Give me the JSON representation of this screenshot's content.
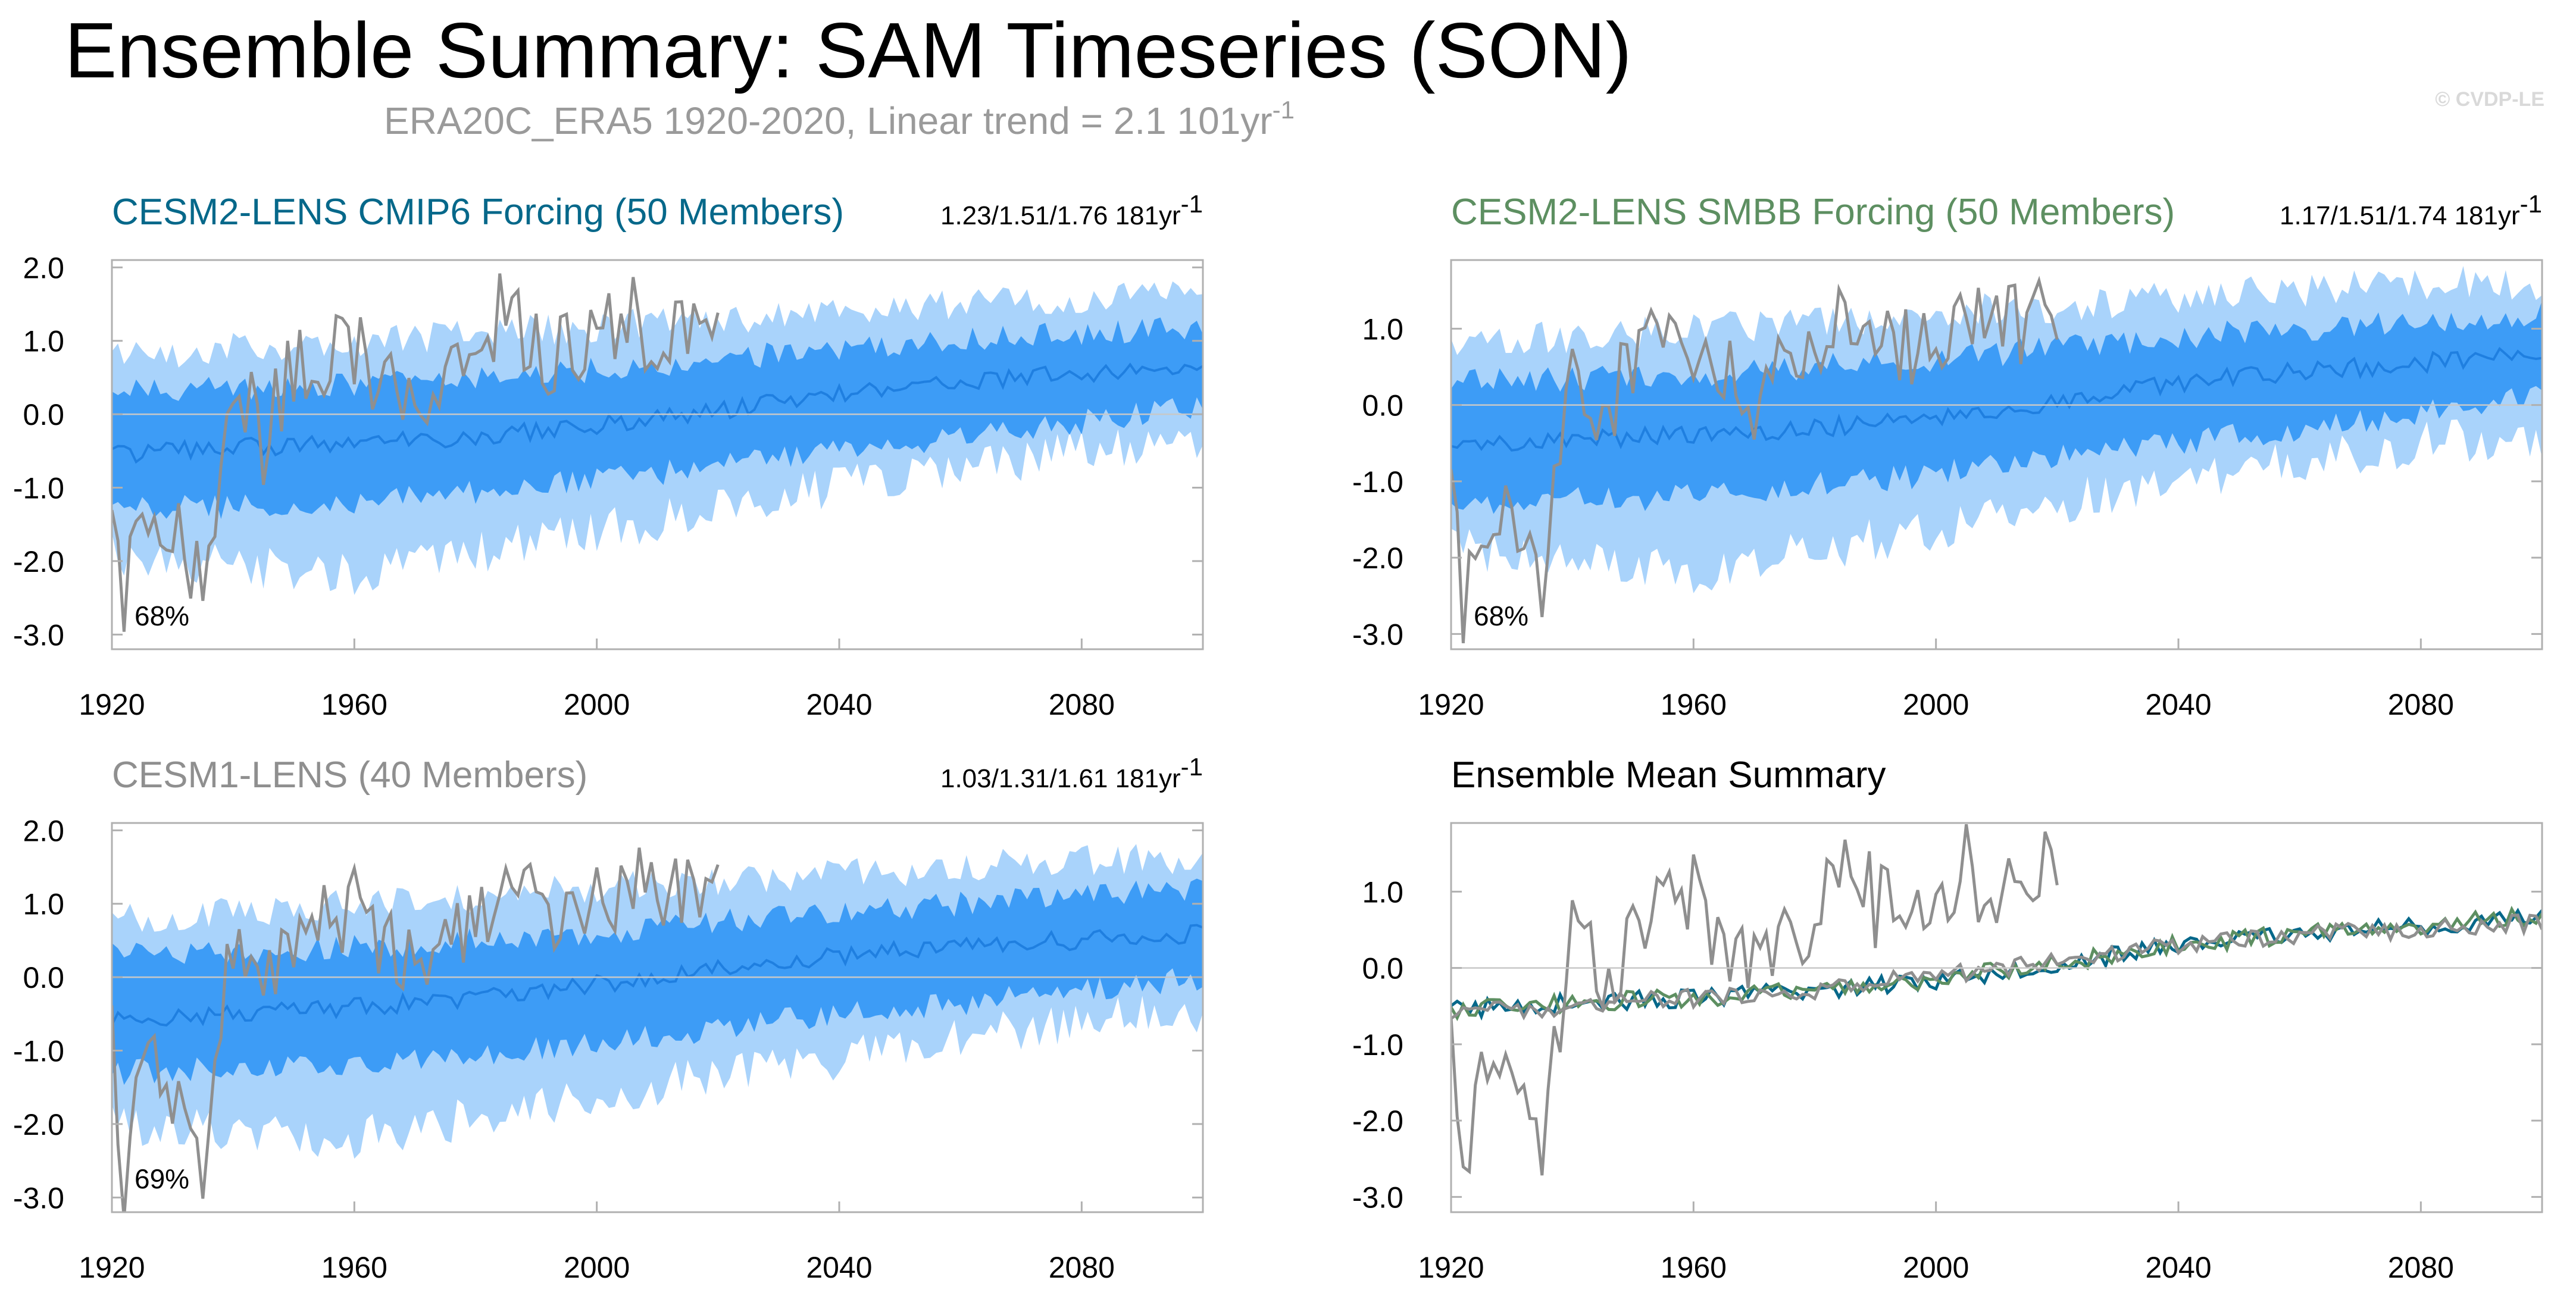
{
  "figure": {
    "title": "Ensemble Summary: SAM Timeseries (SON)",
    "subtitle": "ERA20C_ERA5 1920-2020, Linear trend = 2.1 101yr",
    "subtitle_superscript": "-1",
    "copyright": "© CVDP-LE"
  },
  "colors": {
    "band_outer": "#a9d3fb",
    "band_inner": "#3d9cf6",
    "ens_mean": "#1f7fe0",
    "obs": "#8f8f8f",
    "cesm2_cmip6": "#06688a",
    "cesm2_smbb": "#5d8f61",
    "cesm1": "#8f8f8f"
  },
  "chart_data": [
    {
      "type": "area",
      "title": "CESM2-LENS CMIP6 Forcing (50 Members)",
      "title_color": "#06688a",
      "stats": "1.23/1.51/1.76 181yr",
      "stats_superscript": "-1",
      "percent_label": "68%",
      "x_ticks": [
        "1920",
        "1960",
        "2000",
        "2040",
        "2080"
      ],
      "y_ticks": [
        "2.0",
        "1.0",
        "0.0",
        "-1.0",
        "-2.0",
        "-3.0"
      ],
      "xlim": [
        1920,
        2100
      ],
      "ylim": [
        -3.2,
        2.1
      ],
      "series": [
        {
          "name": "Ensemble mean",
          "x": [
            1920,
            1940,
            1960,
            1980,
            2000,
            2020,
            2040,
            2060,
            2080,
            2100
          ],
          "values": [
            -0.55,
            -0.45,
            -0.4,
            -0.3,
            -0.15,
            0.05,
            0.3,
            0.45,
            0.55,
            0.65
          ]
        },
        {
          "name": "Inner band (min/max)",
          "x": [
            1920,
            1960,
            2000,
            2040,
            2080,
            2100
          ],
          "lower": [
            -1.3,
            -1.2,
            -0.9,
            -0.5,
            -0.1,
            0.1
          ],
          "upper": [
            0.3,
            0.4,
            0.6,
            0.9,
            1.1,
            1.2
          ]
        },
        {
          "name": "Outer band (min/max)",
          "x": [
            1920,
            1960,
            2000,
            2040,
            2080,
            2100
          ],
          "lower": [
            -1.9,
            -2.2,
            -1.6,
            -1.0,
            -0.5,
            -0.4
          ],
          "upper": [
            0.8,
            1.0,
            1.2,
            1.4,
            1.6,
            1.6
          ]
        },
        {
          "name": "ERA20C_ERA5",
          "x": [
            1920,
            1922,
            1925,
            1930,
            1935,
            1940,
            1945,
            1950,
            1960,
            1970,
            1980,
            1985,
            1990,
            2000,
            2005,
            2010,
            2020
          ],
          "values": [
            -0.9,
            -2.7,
            -1.3,
            -1.4,
            -2.5,
            0.6,
            -0.4,
            0.7,
            0.9,
            0.0,
            0.7,
            1.5,
            0.8,
            0.9,
            1.4,
            0.9,
            1.3
          ]
        }
      ]
    },
    {
      "type": "area",
      "title": "CESM2-LENS SMBB Forcing (50 Members)",
      "title_color": "#5d8f61",
      "stats": "1.17/1.51/1.74 181yr",
      "stats_superscript": "-1",
      "percent_label": "68%",
      "x_ticks": [
        "1920",
        "1960",
        "2000",
        "2040",
        "2080"
      ],
      "y_ticks": [
        "1.0",
        "0.0",
        "-1.0",
        "-2.0",
        "-3.0"
      ],
      "xlim": [
        1920,
        2100
      ],
      "ylim": [
        -3.2,
        1.9
      ],
      "series": [
        {
          "name": "Ensemble mean",
          "x": [
            1920,
            1940,
            1960,
            1980,
            2000,
            2020,
            2040,
            2060,
            2080,
            2100
          ],
          "values": [
            -0.55,
            -0.45,
            -0.4,
            -0.3,
            -0.15,
            0.05,
            0.3,
            0.45,
            0.55,
            0.7
          ]
        },
        {
          "name": "Inner band (min/max)",
          "x": [
            1920,
            1960,
            2000,
            2040,
            2080,
            2100
          ],
          "lower": [
            -1.3,
            -1.2,
            -0.9,
            -0.5,
            -0.1,
            0.1
          ],
          "upper": [
            0.3,
            0.4,
            0.6,
            0.9,
            1.1,
            1.2
          ]
        },
        {
          "name": "Outer band (min/max)",
          "x": [
            1920,
            1960,
            2000,
            2040,
            2080,
            2100
          ],
          "lower": [
            -1.9,
            -2.2,
            -1.6,
            -1.0,
            -0.5,
            -0.4
          ],
          "upper": [
            0.8,
            1.0,
            1.2,
            1.4,
            1.6,
            1.6
          ]
        },
        {
          "name": "ERA20C_ERA5",
          "x": [
            1920,
            1922,
            1925,
            1930,
            1935,
            1940,
            1945,
            1950,
            1960,
            1970,
            1980,
            1985,
            1990,
            2000,
            2005,
            2010,
            2020
          ],
          "values": [
            -0.9,
            -2.7,
            -1.3,
            -1.4,
            -2.5,
            0.6,
            -0.4,
            0.7,
            0.9,
            0.0,
            0.7,
            1.5,
            0.8,
            0.9,
            1.4,
            0.9,
            1.3
          ]
        }
      ]
    },
    {
      "type": "area",
      "title": "CESM1-LENS (40 Members)",
      "title_color": "#8f8f8f",
      "stats": "1.03/1.31/1.61 181yr",
      "stats_superscript": "-1",
      "percent_label": "69%",
      "x_ticks": [
        "1920",
        "1960",
        "2000",
        "2040",
        "2080"
      ],
      "y_ticks": [
        "2.0",
        "1.0",
        "0.0",
        "-1.0",
        "-2.0",
        "-3.0"
      ],
      "xlim": [
        1920,
        2100
      ],
      "ylim": [
        -3.2,
        2.1
      ],
      "series": [
        {
          "name": "Ensemble mean",
          "x": [
            1920,
            1940,
            1960,
            1980,
            2000,
            2020,
            2040,
            2060,
            2080,
            2100
          ],
          "values": [
            -0.6,
            -0.5,
            -0.4,
            -0.3,
            -0.1,
            0.1,
            0.3,
            0.45,
            0.5,
            0.6
          ]
        },
        {
          "name": "Inner band (min/max)",
          "x": [
            1920,
            1960,
            2000,
            2040,
            2080,
            2100
          ],
          "lower": [
            -1.3,
            -1.2,
            -0.9,
            -0.5,
            -0.2,
            0.0
          ],
          "upper": [
            0.3,
            0.4,
            0.6,
            0.9,
            1.1,
            1.2
          ]
        },
        {
          "name": "Outer band (min/max)",
          "x": [
            1920,
            1960,
            2000,
            2040,
            2080,
            2100
          ],
          "lower": [
            -2.0,
            -2.2,
            -1.6,
            -1.1,
            -0.6,
            -0.5
          ],
          "upper": [
            0.8,
            1.0,
            1.2,
            1.4,
            1.6,
            1.6
          ]
        },
        {
          "name": "ERA20C_ERA5",
          "x": [
            1920,
            1922,
            1925,
            1930,
            1935,
            1940,
            1945,
            1950,
            1960,
            1970,
            1980,
            1985,
            1990,
            2000,
            2005,
            2010,
            2020
          ],
          "values": [
            -0.9,
            -2.7,
            -1.3,
            -1.4,
            -2.5,
            0.6,
            -0.4,
            0.7,
            0.9,
            0.0,
            0.7,
            1.5,
            0.8,
            0.9,
            1.4,
            0.9,
            1.3
          ]
        }
      ]
    },
    {
      "type": "line",
      "title": "Ensemble Mean Summary",
      "title_color": "#000000",
      "x_ticks": [
        "1920",
        "1960",
        "2000",
        "2040",
        "2080"
      ],
      "y_ticks": [
        "1.0",
        "0.0",
        "-1.0",
        "-2.0",
        "-3.0"
      ],
      "xlim": [
        1920,
        2100
      ],
      "ylim": [
        -3.2,
        1.9
      ],
      "series": [
        {
          "name": "CESM2-LENS CMIP6 Forcing",
          "color": "#06688a",
          "x": [
            1920,
            1940,
            1960,
            1980,
            2000,
            2020,
            2040,
            2060,
            2080,
            2100
          ],
          "values": [
            -0.55,
            -0.45,
            -0.4,
            -0.3,
            -0.15,
            0.05,
            0.3,
            0.45,
            0.55,
            0.65
          ]
        },
        {
          "name": "CESM2-LENS SMBB Forcing",
          "color": "#5d8f61",
          "x": [
            1920,
            1940,
            1960,
            1980,
            2000,
            2020,
            2040,
            2060,
            2080,
            2100
          ],
          "values": [
            -0.55,
            -0.45,
            -0.4,
            -0.3,
            -0.15,
            0.05,
            0.3,
            0.45,
            0.55,
            0.7
          ]
        },
        {
          "name": "CESM1-LENS",
          "color": "#8f8f8f",
          "x": [
            1920,
            1940,
            1960,
            1980,
            2000,
            2020,
            2040,
            2060,
            2080,
            2100
          ],
          "values": [
            -0.6,
            -0.5,
            -0.4,
            -0.3,
            -0.1,
            0.1,
            0.3,
            0.45,
            0.5,
            0.6
          ]
        },
        {
          "name": "ERA20C_ERA5",
          "color": "#8f8f8f",
          "x": [
            1920,
            1922,
            1925,
            1930,
            1935,
            1940,
            1945,
            1950,
            1960,
            1970,
            1980,
            1985,
            1990,
            2000,
            2005,
            2010,
            2020
          ],
          "values": [
            -0.9,
            -2.7,
            -1.3,
            -1.4,
            -2.5,
            0.6,
            -0.4,
            0.7,
            0.9,
            0.0,
            0.7,
            1.5,
            0.8,
            0.9,
            1.4,
            0.9,
            1.3
          ]
        }
      ]
    }
  ]
}
